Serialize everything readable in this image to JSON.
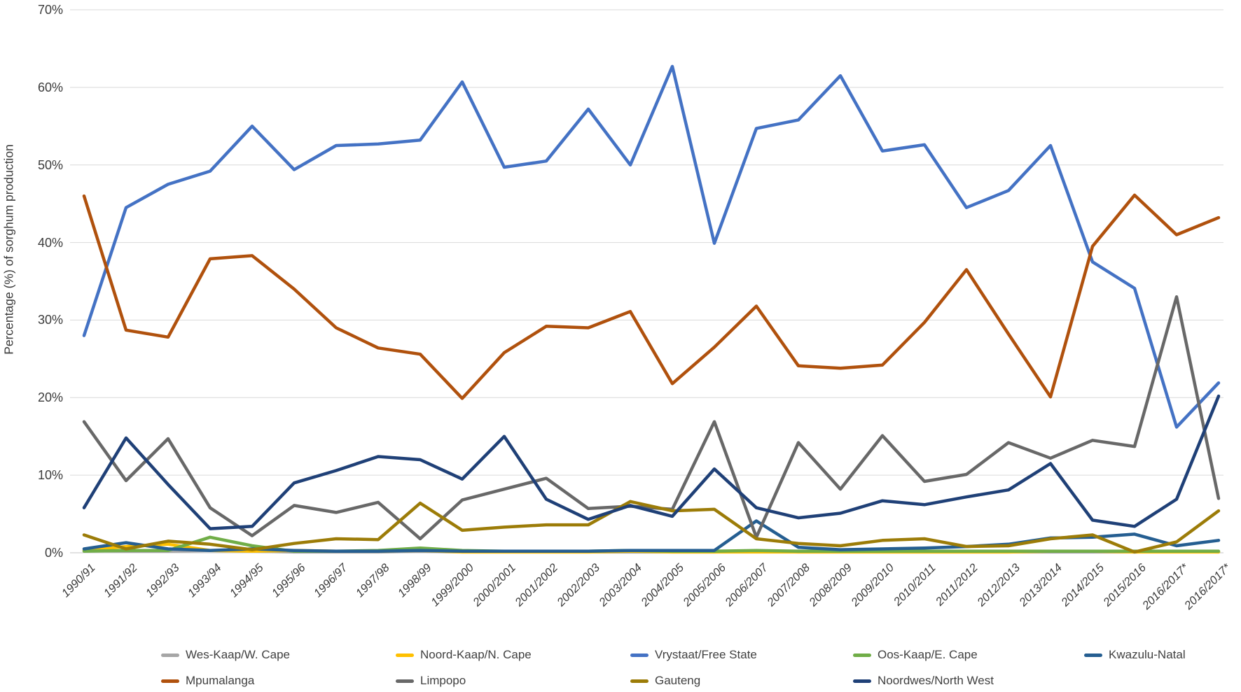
{
  "chart_data": {
    "type": "line",
    "title": "",
    "xlabel": "",
    "ylabel": "Percentage (%) of sorghum production",
    "ylim": [
      0,
      70
    ],
    "grid": true,
    "legend_position": "bottom",
    "y_tick_labels": [
      "0%",
      "10%",
      "20%",
      "30%",
      "40%",
      "50%",
      "60%",
      "70%"
    ],
    "categories": [
      "1990/91",
      "1991/92",
      "1992/93",
      "1993/94",
      "1994/95",
      "1995/96",
      "1996/97",
      "1997/98",
      "1998/99",
      "1999/2000",
      "2000/2001",
      "2001/2002",
      "2002/2003",
      "2003/2004",
      "2004/2005",
      "2005/2006",
      "2006/2007",
      "2007/2008",
      "2008/2009",
      "2009/2010",
      "2010/2011",
      "2011/2012",
      "2012/2013",
      "2013/2014",
      "2014/2015",
      "2015/2016",
      "2016/2017*",
      "2016/2017*"
    ],
    "series": [
      {
        "name": "Wes-Kaap/W. Cape",
        "color": "#a6a6a6",
        "values": [
          0.3,
          0.2,
          0.2,
          0.3,
          0.2,
          0.1,
          0.1,
          0.1,
          0.2,
          0.1,
          0.1,
          0.1,
          0.1,
          0.1,
          0.1,
          0.1,
          0.2,
          0.1,
          0.1,
          0.1,
          0.1,
          0.1,
          0.1,
          0.1,
          0.1,
          0.1,
          0.2,
          0.1
        ]
      },
      {
        "name": "Noord-Kaap/N. Cape",
        "color": "#ffc000",
        "values": [
          0.3,
          0.8,
          1.1,
          0.3,
          0.2,
          0.3,
          0.2,
          0.2,
          0.3,
          0.1,
          0.1,
          0.1,
          0.1,
          0.2,
          0.1,
          0.1,
          0.1,
          0.1,
          0.1,
          0.1,
          0.1,
          0.1,
          0.1,
          0.2,
          0.2,
          0.1,
          0.1,
          0.1
        ]
      },
      {
        "name": "Vrystaat/Free State",
        "color": "#4472c4",
        "values": [
          28,
          44.5,
          47.5,
          49.2,
          55,
          49.4,
          52.5,
          52.7,
          53.2,
          60.7,
          49.7,
          50.5,
          57.2,
          50,
          62.7,
          39.9,
          54.7,
          55.8,
          61.5,
          51.8,
          52.6,
          44.5,
          46.7,
          52.5,
          37.5,
          34.1,
          16.2,
          21.9
        ]
      },
      {
        "name": "Oos-Kaap/E. Cape",
        "color": "#70ad47",
        "values": [
          0.2,
          0.3,
          0.3,
          2,
          0.9,
          0.2,
          0.2,
          0.3,
          0.6,
          0.3,
          0.2,
          0.2,
          0.2,
          0.3,
          0.2,
          0.2,
          0.3,
          0.2,
          0.2,
          0.2,
          0.2,
          0.2,
          0.2,
          0.2,
          0.2,
          0.2,
          0.2,
          0.2
        ]
      },
      {
        "name": "Kwazulu-Natal",
        "color": "#255e91",
        "values": [
          0.5,
          1.3,
          0.5,
          0.3,
          0.5,
          0.3,
          0.2,
          0.2,
          0.3,
          0.2,
          0.2,
          0.2,
          0.2,
          0.3,
          0.3,
          0.3,
          4.1,
          0.7,
          0.4,
          0.5,
          0.6,
          0.8,
          1.1,
          1.9,
          2,
          2.4,
          0.9,
          1.6
        ]
      },
      {
        "name": "Mpumalanga",
        "color": "#b0510d",
        "values": [
          46,
          28.7,
          27.8,
          37.9,
          38.3,
          34,
          29,
          26.4,
          25.6,
          19.9,
          25.8,
          29.2,
          29,
          31.1,
          21.8,
          26.5,
          31.8,
          24.1,
          23.8,
          24.2,
          29.7,
          36.5,
          28.2,
          20.1,
          39.5,
          46.1,
          41,
          43.2
        ]
      },
      {
        "name": "Limpopo",
        "color": "#686868",
        "values": [
          16.9,
          9.3,
          14.7,
          5.8,
          2.2,
          6.1,
          5.2,
          6.5,
          1.8,
          6.8,
          8.2,
          9.6,
          5.7,
          6,
          5.6,
          16.9,
          2,
          14.2,
          8.2,
          15.1,
          9.2,
          10.1,
          14.2,
          12.2,
          14.5,
          13.7,
          33,
          7
        ]
      },
      {
        "name": "Gauteng",
        "color": "#9c7c08",
        "values": [
          2.3,
          0.5,
          1.5,
          1.1,
          0.4,
          1.2,
          1.8,
          1.7,
          6.4,
          2.9,
          3.3,
          3.6,
          3.6,
          6.6,
          5.4,
          5.6,
          1.8,
          1.2,
          0.9,
          1.6,
          1.8,
          0.8,
          0.9,
          1.8,
          2.3,
          0.1,
          1.4,
          5.4
        ]
      },
      {
        "name": "Noordwes/North West",
        "color": "#1f4077",
        "values": [
          5.8,
          14.8,
          8.8,
          3.1,
          3.4,
          9,
          10.6,
          12.4,
          12,
          9.5,
          15,
          6.9,
          4.3,
          6.1,
          4.7,
          10.8,
          5.8,
          4.5,
          5.1,
          6.7,
          6.2,
          7.2,
          8.1,
          11.5,
          4.2,
          3.4,
          6.9,
          20.2
        ]
      }
    ],
    "legend_rows": [
      [
        "Wes-Kaap/W. Cape",
        "Noord-Kaap/N. Cape",
        "Vrystaat/Free State",
        "Oos-Kaap/E. Cape",
        "Kwazulu-Natal"
      ],
      [
        "Mpumalanga",
        "Limpopo",
        "Gauteng",
        "Noordwes/North West"
      ]
    ],
    "colors": {
      "gridline": "#d9d9d9",
      "axis_line": "#c6c6c6",
      "tick_text": "#3b3b3b",
      "legend_text": "#404040",
      "background": "#ffffff"
    }
  }
}
